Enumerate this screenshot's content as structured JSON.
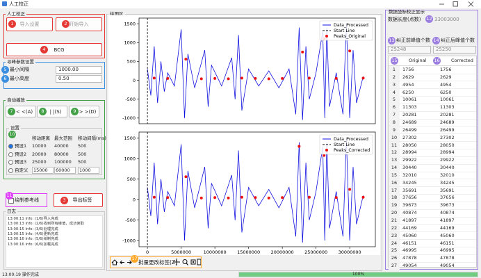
{
  "window": {
    "title": "人工校正"
  },
  "manual": {
    "title": "人工校正",
    "import_settings": {
      "badge": "1",
      "label": "导入设置"
    },
    "start_import": {
      "badge": "2",
      "label": "开始导入"
    },
    "bcg": {
      "badge": "4",
      "label": "BCG"
    }
  },
  "params": {
    "title": "寻峰参数设置",
    "min_interval": {
      "badge": "5",
      "label": "最小间隔",
      "value": "1000.00"
    },
    "min_height": {
      "badge": "6",
      "label": "最小高度",
      "value": "0.50"
    }
  },
  "autoplay": {
    "title": "自动播放",
    "buttons": [
      {
        "badge": "7",
        "label": "< <(A)"
      },
      {
        "badge": "8",
        "label": "| |(S)"
      },
      {
        "badge": "9",
        "label": "> >(D)"
      }
    ],
    "settings": {
      "title": "设置",
      "badge": "10",
      "headers": [
        "移动距离",
        "最大范围",
        "移动间隔(ms)"
      ],
      "rows": [
        {
          "name": "预设1",
          "values": [
            10000,
            40000,
            500
          ]
        },
        {
          "name": "预设2",
          "values": [
            20000,
            80000,
            500
          ]
        },
        {
          "name": "预设3",
          "values": [
            25000,
            100000,
            500
          ]
        },
        {
          "name": "自定义",
          "values": [
            15000,
            60000,
            1000
          ]
        }
      ]
    }
  },
  "draw_reference": {
    "badge": "11",
    "label": "绘制参考线"
  },
  "export": {
    "badge": "3",
    "label": "导出标签"
  },
  "log": {
    "title": "日志",
    "lines": [
      "13:00:11 Info: (1/6)导入完成",
      "13:00:13 Info: (2/6)找到所有峰值，成功读取",
      "13:00:15 Info: (3/6)处理完成",
      "13:00:15 Info: (4/6)更新完成",
      "13:00:16 Info: (5/6)绘制完成",
      "13:00:16 Info: (6/6)加载完成"
    ]
  },
  "plot_area": {
    "title": "绘图区"
  },
  "chart_data": [
    {
      "type": "line",
      "xlim": [
        -1250000,
        33800000
      ],
      "ylim": [
        -1150,
        1650
      ],
      "yticks": [
        -1000,
        -500,
        0,
        500,
        1000,
        1500
      ],
      "legend": "upper right",
      "series": [
        {
          "name": "Data_Processed",
          "color": "#1010e0",
          "style": "line",
          "x": [
            0,
            500000,
            1000000,
            1500000,
            2000000,
            2500000,
            3000000,
            4000000,
            5000000,
            5500000,
            6000000,
            7000000,
            8500000,
            9000000,
            9500000,
            11000000,
            12500000,
            13000000,
            13500000,
            14000000,
            15000000,
            16500000,
            18000000,
            19500000,
            21000000,
            22000000,
            22500000,
            23000000,
            23500000,
            24000000,
            25000000,
            26000000,
            26300000,
            26600000,
            27000000,
            28000000,
            29000000,
            29500000,
            30000000,
            30500000,
            31000000,
            32000000
          ],
          "values": [
            300,
            -400,
            900,
            -600,
            500,
            -300,
            200,
            -150,
            1350,
            -1000,
            700,
            -200,
            800,
            -700,
            400,
            -150,
            600,
            -500,
            1200,
            -800,
            300,
            -150,
            250,
            -200,
            300,
            -900,
            1400,
            -1050,
            900,
            -500,
            200,
            1300,
            -1000,
            1400,
            -700,
            200,
            -900,
            1500,
            -1000,
            800,
            -600,
            100
          ]
        },
        {
          "name": "Start Line",
          "color": "#000000",
          "style": "vline",
          "x": [
            0
          ]
        },
        {
          "name": "Peaks_Original",
          "color": "#ee1111",
          "style": "markers",
          "x": [
            1000000,
            3000000,
            5700000,
            8000000,
            10000000,
            12000000,
            14000000,
            16000000,
            18000000,
            20000000,
            23000000,
            24000000,
            26200000,
            28000000,
            30000000,
            32000000
          ],
          "values": [
            60,
            50,
            560,
            40,
            50,
            40,
            60,
            50,
            40,
            50,
            750,
            60,
            1100,
            50,
            780,
            60
          ]
        }
      ]
    },
    {
      "type": "line",
      "xlim": [
        -1250000,
        33800000
      ],
      "ylim": [
        -1150,
        1650
      ],
      "yticks": [
        -1000,
        -500,
        0,
        500,
        1000,
        1500
      ],
      "xticks": [
        0,
        5000000,
        10000000,
        15000000,
        20000000,
        25000000,
        30000000
      ],
      "legend": "upper right",
      "series": [
        {
          "name": "Data_Processed",
          "color": "#1010e0",
          "style": "line",
          "x": [
            0,
            500000,
            1000000,
            1500000,
            2000000,
            2500000,
            3000000,
            4000000,
            5000000,
            5500000,
            6000000,
            7000000,
            8500000,
            9000000,
            9500000,
            11000000,
            12500000,
            13000000,
            13500000,
            14000000,
            15000000,
            16500000,
            18000000,
            19500000,
            21000000,
            22000000,
            22500000,
            23000000,
            23500000,
            24000000,
            25000000,
            26000000,
            26300000,
            26600000,
            27000000,
            28000000,
            29000000,
            29500000,
            30000000,
            30500000,
            31000000,
            32000000
          ],
          "values": [
            300,
            -400,
            900,
            -600,
            500,
            -300,
            200,
            -150,
            1350,
            -1000,
            700,
            -200,
            800,
            -700,
            400,
            -150,
            600,
            -500,
            1200,
            -800,
            300,
            -150,
            250,
            -200,
            300,
            -900,
            1400,
            -1050,
            900,
            -500,
            200,
            1300,
            -1000,
            1400,
            -700,
            200,
            -900,
            1500,
            -1000,
            800,
            -600,
            100
          ]
        },
        {
          "name": "Start Line",
          "color": "#000000",
          "style": "vline",
          "x": [
            0
          ]
        },
        {
          "name": "Peaks_Corrected",
          "color": "#ee1111",
          "style": "markers",
          "x": [
            1000000,
            3000000,
            5700000,
            8000000,
            10000000,
            12000000,
            14000000,
            16000000,
            18000000,
            20000000,
            22500000,
            24000000,
            26200000,
            28000000,
            30000000,
            32000000
          ],
          "values": [
            60,
            50,
            560,
            40,
            50,
            40,
            60,
            50,
            40,
            50,
            1300,
            60,
            1080,
            50,
            250,
            60
          ]
        }
      ]
    }
  ],
  "toolbar": {
    "badge": "17",
    "label": "批量更改标签(Z)"
  },
  "right": {
    "title": "数据坐标校正显示",
    "length": {
      "label": "数据长度(点数)",
      "badge": "12",
      "value": "33003000"
    },
    "before": {
      "badge": "13",
      "label": "纠正前峰值个数",
      "value": "25248"
    },
    "after": {
      "badge": "14",
      "label": "纠正后峰值个数",
      "value": "25250"
    },
    "table": {
      "headers": [
        {
          "badge": "15",
          "label": "Original"
        },
        {
          "badge": "16",
          "label": "Corrected"
        }
      ],
      "rows": [
        [
          1,
          1756,
          1756
        ],
        [
          2,
          2629,
          2629
        ],
        [
          3,
          4954,
          4954
        ],
        [
          4,
          6250,
          6250
        ],
        [
          5,
          10061,
          10061
        ],
        [
          6,
          11303,
          11303
        ],
        [
          7,
          20281,
          20281
        ],
        [
          8,
          24689,
          24689
        ],
        [
          9,
          26499,
          26499
        ],
        [
          10,
          27302,
          27302
        ],
        [
          11,
          28050,
          28050
        ],
        [
          12,
          28994,
          28994
        ],
        [
          13,
          29922,
          29922
        ],
        [
          14,
          30440,
          30440
        ],
        [
          15,
          32010,
          32010
        ],
        [
          16,
          34245,
          34245
        ],
        [
          17,
          35691,
          35691
        ],
        [
          18,
          37656,
          37656
        ],
        [
          19,
          39673,
          39673
        ],
        [
          20,
          40874,
          40874
        ],
        [
          21,
          41897,
          41897
        ],
        [
          22,
          44169,
          44169
        ],
        [
          23,
          45060,
          45060
        ],
        [
          24,
          46151,
          46151
        ],
        [
          25,
          46995,
          46995
        ],
        [
          26,
          47878,
          47878
        ],
        [
          27,
          49054,
          49054
        ]
      ]
    }
  },
  "status": {
    "message": "13:00:19 操作完成",
    "progress": "100%"
  }
}
